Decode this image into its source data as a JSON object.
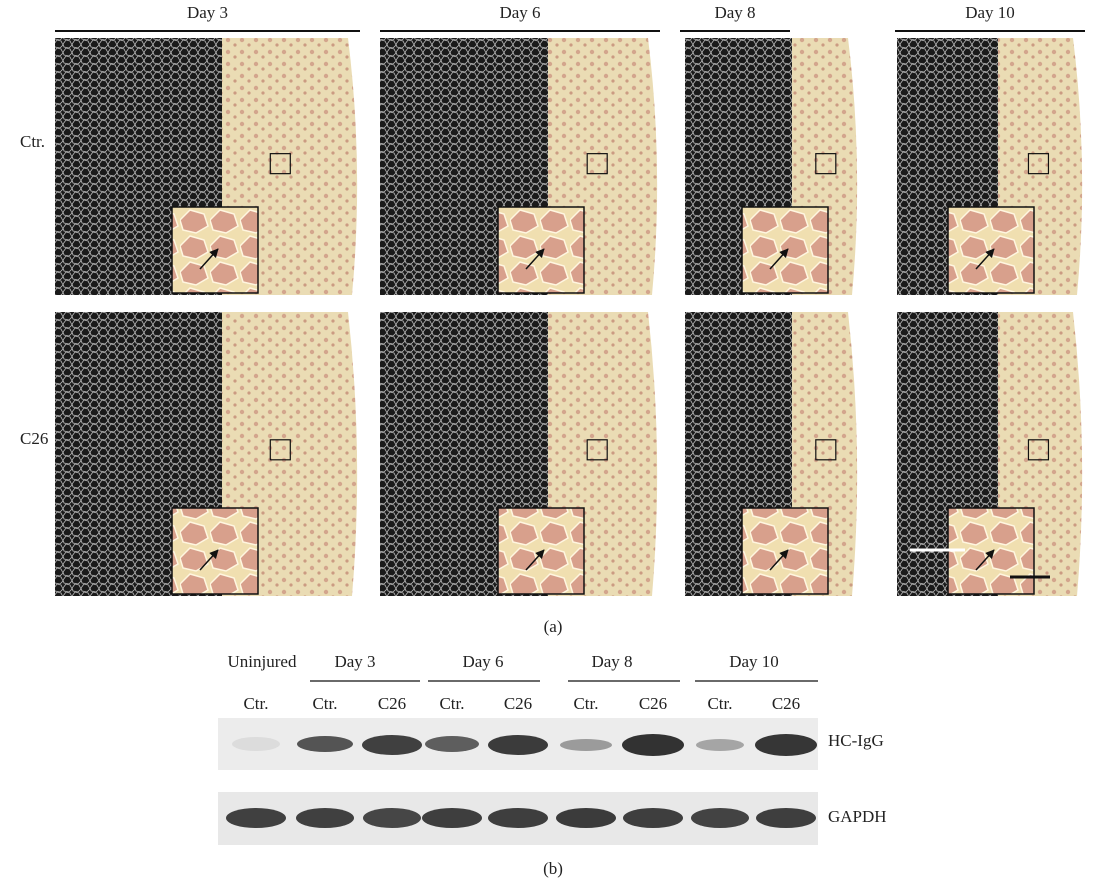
{
  "panel_a": {
    "label": "(a)",
    "columns": [
      "Day 3",
      "Day 6",
      "Day 8",
      "Day 10"
    ],
    "rows": [
      "Ctr.",
      "C26"
    ]
  },
  "panel_b": {
    "label": "(b)",
    "groups": [
      "Uninjured",
      "Day 3",
      "Day 6",
      "Day 8",
      "Day 10"
    ],
    "lanes": [
      "Ctr.",
      "Ctr.",
      "C26",
      "Ctr.",
      "C26",
      "Ctr.",
      "C26",
      "Ctr.",
      "C26"
    ],
    "blots": [
      "HC-IgG",
      "GAPDH"
    ]
  }
}
